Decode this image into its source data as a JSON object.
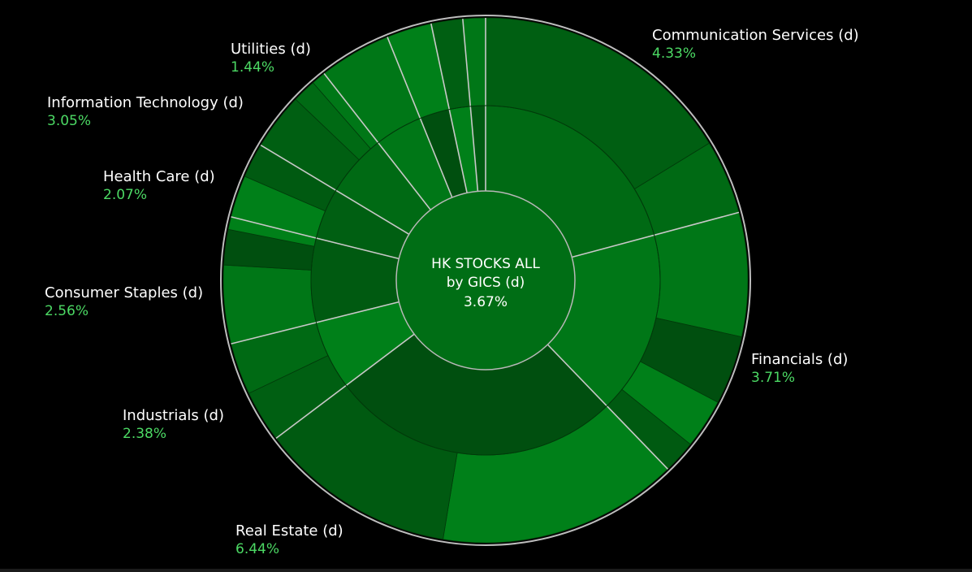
{
  "chart_data": {
    "type": "sunburst",
    "title": "HK STOCKS ALL",
    "subtitle": "by GICS (d)",
    "center_value": "3.67%",
    "sectors": [
      {
        "name": "Communication Services (d)",
        "value": "4.33%",
        "start_deg": 0,
        "end_deg": 75
      },
      {
        "name": "Financials (d)",
        "value": "3.71%",
        "start_deg": 75,
        "end_deg": 136
      },
      {
        "name": "Real Estate (d)",
        "value": "6.44%",
        "start_deg": 136,
        "end_deg": 233
      },
      {
        "name": "Industrials (d)",
        "value": "2.38%",
        "start_deg": 233,
        "end_deg": 256
      },
      {
        "name": "Consumer Staples (d)",
        "value": "2.56%",
        "start_deg": 256,
        "end_deg": 284
      },
      {
        "name": "Health Care (d)",
        "value": "2.07%",
        "start_deg": 284,
        "end_deg": 301
      },
      {
        "name": "Information Technology (d)",
        "value": "3.05%",
        "start_deg": 301,
        "end_deg": 322
      },
      {
        "name": "Utilities (d)",
        "value": "1.44%",
        "start_deg": 322,
        "end_deg": 338
      },
      {
        "name": "",
        "value": "",
        "start_deg": 338,
        "end_deg": 348
      },
      {
        "name": "",
        "value": "",
        "start_deg": 348,
        "end_deg": 355
      },
      {
        "name": "",
        "value": "",
        "start_deg": 355,
        "end_deg": 360
      }
    ]
  },
  "colors": {
    "background": "#000000",
    "positive_text": "#4cd964",
    "label_text": "#ffffff",
    "separator": "#c8c8c8"
  }
}
